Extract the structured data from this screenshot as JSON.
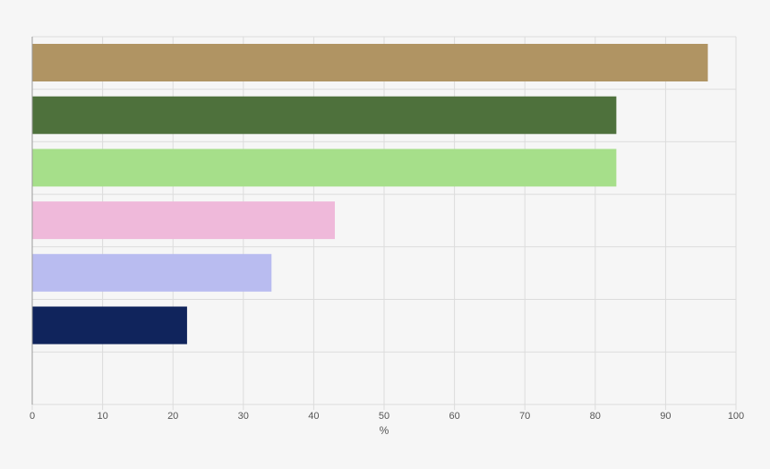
{
  "chart_data": {
    "type": "bar",
    "orientation": "horizontal",
    "categories": [
      "",
      "",
      "",
      "",
      "",
      ""
    ],
    "values": [
      96,
      83,
      83,
      43,
      34,
      22
    ],
    "colors": [
      "#b09463",
      "#4e713c",
      "#a6df8a",
      "#efb9da",
      "#b9bcf0",
      "#10245c"
    ],
    "title": "",
    "xlabel": "%",
    "ylabel": "",
    "xlim": [
      0,
      100
    ],
    "xticks": [
      0,
      10,
      20,
      30,
      40,
      50,
      60,
      70,
      80,
      90,
      100
    ],
    "grid": true,
    "legend": "none"
  }
}
